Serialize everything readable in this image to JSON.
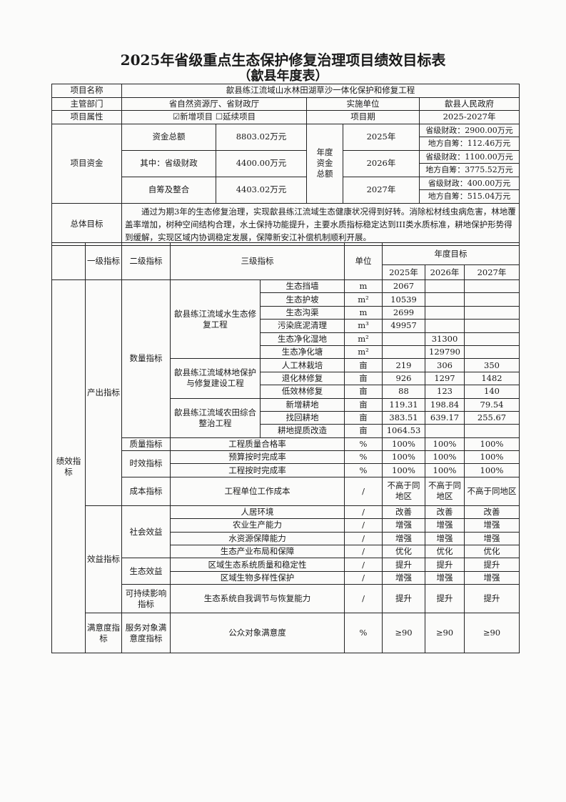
{
  "title": "2025年省级重点生态保护修复治理项目绩效目标表",
  "subtitle": "（歙县年度表）",
  "info": {
    "project_name_label": "项目名称",
    "project_name": "歙县练江流域山水林田湖草沙一体化保护和修复工程",
    "dept_label": "主管部门",
    "dept": "省自然资源厅、省财政厅",
    "impl_label": "实施单位",
    "impl": "歙县人民政府",
    "attr_label": "项目属性",
    "attr": "☑新增项目 ☐延续项目",
    "period_label": "项目期",
    "period": "2025-2027年",
    "funds_label": "项目资金",
    "total_label": "资金总额",
    "total": "8803.02万元",
    "prov_label": "其中：省级财政",
    "prov": "4400.00万元",
    "self_label": "自筹及整合",
    "self": "4403.02万元",
    "annual_label": "年度资金总额",
    "annual": [
      {
        "year": "2025年",
        "prov": "省级财政：2900.00万元",
        "local": "地方自筹：112.46万元"
      },
      {
        "year": "2026年",
        "prov": "省级财政：1100.00万元",
        "local": "地方自筹：3775.52万元"
      },
      {
        "year": "2027年",
        "prov": "省级财政：400.00万元",
        "local": "地方自筹：515.04万元"
      }
    ],
    "goal_label": "总体目标",
    "goal": "通过为期3年的生态修复治理，实现歙县练江流域生态健康状况得到好转。消除松材线虫病危害，林地覆盖率增加，树种空间结构合理，水土保持功能提升，主要水质指标稳定达到III类水质标准，耕地保护形势得到缓解，实现区域内协调稳定发展，保障新安江补偿机制顺利开展。"
  },
  "header": {
    "level1": "一级指标",
    "level2": "二级指标",
    "level3": "三级指标",
    "unit": "单位",
    "annual": "年度目标",
    "years": [
      "2025年",
      "2026年",
      "2027年"
    ]
  },
  "performance": {
    "label": "绩效指标",
    "groups": [
      {
        "label": "产出指标",
        "subs": [
          {
            "label": "数量指标",
            "projects": [
              {
                "name": "歙县练江流域水生态修复工程",
                "rows": [
                  {
                    "name": "生态挡墙",
                    "unit": "m",
                    "v": [
                      "2067",
                      "",
                      ""
                    ]
                  },
                  {
                    "name": "生态护坡",
                    "unit": "m²",
                    "v": [
                      "10539",
                      "",
                      ""
                    ]
                  },
                  {
                    "name": "生态沟渠",
                    "unit": "m",
                    "v": [
                      "2699",
                      "",
                      ""
                    ]
                  },
                  {
                    "name": "污染底泥清理",
                    "unit": "m³",
                    "v": [
                      "49957",
                      "",
                      ""
                    ]
                  },
                  {
                    "name": "生态净化湿地",
                    "unit": "m²",
                    "v": [
                      "",
                      "31300",
                      ""
                    ]
                  },
                  {
                    "name": "生态净化塘",
                    "unit": "m²",
                    "v": [
                      "",
                      "129790",
                      ""
                    ]
                  }
                ]
              },
              {
                "name": "歙县练江流域林地保护与修复建设工程",
                "rows": [
                  {
                    "name": "人工林栽培",
                    "unit": "亩",
                    "v": [
                      "219",
                      "306",
                      "350"
                    ]
                  },
                  {
                    "name": "退化林修复",
                    "unit": "亩",
                    "v": [
                      "926",
                      "1297",
                      "1482"
                    ]
                  },
                  {
                    "name": "低效林修复",
                    "unit": "亩",
                    "v": [
                      "88",
                      "123",
                      "140"
                    ]
                  }
                ]
              },
              {
                "name": "歙县练江流域农田综合整治工程",
                "rows": [
                  {
                    "name": "新增耕地",
                    "unit": "亩",
                    "v": [
                      "119.31",
                      "198.84",
                      "79.54"
                    ]
                  },
                  {
                    "name": "找回耕地",
                    "unit": "亩",
                    "v": [
                      "383.51",
                      "639.17",
                      "255.67"
                    ]
                  },
                  {
                    "name": "耕地提质改造",
                    "unit": "亩",
                    "v": [
                      "1064.53",
                      "",
                      ""
                    ]
                  }
                ]
              }
            ]
          },
          {
            "label": "质量指标",
            "rows": [
              {
                "name": "工程质量合格率",
                "unit": "%",
                "v": [
                  "100%",
                  "100%",
                  "100%"
                ]
              }
            ]
          },
          {
            "label": "时效指标",
            "rows": [
              {
                "name": "预算按时完成率",
                "unit": "%",
                "v": [
                  "100%",
                  "100%",
                  "100%"
                ]
              },
              {
                "name": "工程按时完成率",
                "unit": "%",
                "v": [
                  "100%",
                  "100%",
                  "100%"
                ]
              }
            ]
          },
          {
            "label": "成本指标",
            "tall": true,
            "rows": [
              {
                "name": "工程单位工作成本",
                "unit": "/",
                "v": [
                  "不高于同地区",
                  "不高于同地区",
                  "不高于同地区"
                ]
              }
            ]
          }
        ]
      },
      {
        "label": "效益指标",
        "subs": [
          {
            "label": "社会效益",
            "rows": [
              {
                "name": "人居环境",
                "unit": "/",
                "v": [
                  "改善",
                  "改善",
                  "改善"
                ]
              },
              {
                "name": "农业生产能力",
                "unit": "/",
                "v": [
                  "增强",
                  "增强",
                  "增强"
                ]
              },
              {
                "name": "水资源保障能力",
                "unit": "/",
                "v": [
                  "增强",
                  "增强",
                  "增强"
                ]
              },
              {
                "name": "生态产业布局和保障",
                "unit": "/",
                "v": [
                  "优化",
                  "优化",
                  "优化"
                ]
              }
            ]
          },
          {
            "label": "生态效益",
            "rows": [
              {
                "name": "区域生态系统质量和稳定性",
                "unit": "/",
                "v": [
                  "提升",
                  "提升",
                  "提升"
                ]
              },
              {
                "name": "区域生物多样性保护",
                "unit": "/",
                "v": [
                  "增强",
                  "增强",
                  "增强"
                ]
              }
            ]
          },
          {
            "label": "可持续影响指标",
            "tall": true,
            "rows": [
              {
                "name": "生态系统自我调节与恢复能力",
                "unit": "/",
                "v": [
                  "提升",
                  "提升",
                  "提升"
                ]
              }
            ]
          }
        ]
      },
      {
        "label": "满意度指标",
        "subs": [
          {
            "label": "服务对象满意度指标",
            "xtall": true,
            "rows": [
              {
                "name": "公众对象满意度",
                "unit": "%",
                "v": [
                  "≥90",
                  "≥90",
                  "≥90"
                ]
              }
            ]
          }
        ]
      }
    ]
  }
}
